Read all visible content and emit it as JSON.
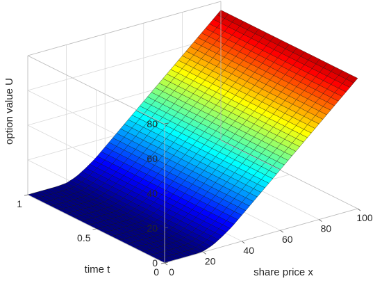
{
  "chart_data": {
    "type": "surface",
    "title": "",
    "xlabel": "share price x",
    "ylabel": "time t",
    "zlabel": "option value U",
    "x_range": [
      0,
      100
    ],
    "y_range": [
      0,
      1
    ],
    "z_range": [
      0,
      80
    ],
    "x_ticks": [
      {
        "value": 0,
        "label": "0"
      },
      {
        "value": 20,
        "label": "20"
      },
      {
        "value": 40,
        "label": "40"
      },
      {
        "value": 60,
        "label": "60"
      },
      {
        "value": 80,
        "label": "80"
      },
      {
        "value": 100,
        "label": "100"
      }
    ],
    "y_ticks": [
      {
        "value": 0,
        "label": "0"
      },
      {
        "value": 0.5,
        "label": "0.5"
      },
      {
        "value": 1,
        "label": "1"
      }
    ],
    "z_ticks": [
      {
        "value": 0,
        "label": "0"
      },
      {
        "value": 20,
        "label": "20"
      },
      {
        "value": 40,
        "label": "40"
      },
      {
        "value": 60,
        "label": "60"
      },
      {
        "value": 80,
        "label": "80"
      }
    ],
    "surface_profile_x": [
      0,
      5,
      10,
      15,
      20,
      25,
      30,
      35,
      40,
      45,
      50,
      55,
      60,
      65,
      70,
      75,
      80,
      85,
      90,
      95,
      100
    ],
    "surface_profile_U": [
      0,
      0,
      0,
      0,
      0.5,
      2.5,
      6,
      10,
      15,
      20,
      25,
      30,
      35,
      40,
      45,
      50,
      55,
      60,
      65,
      70,
      75
    ],
    "colormap": "jet",
    "grid": true
  }
}
